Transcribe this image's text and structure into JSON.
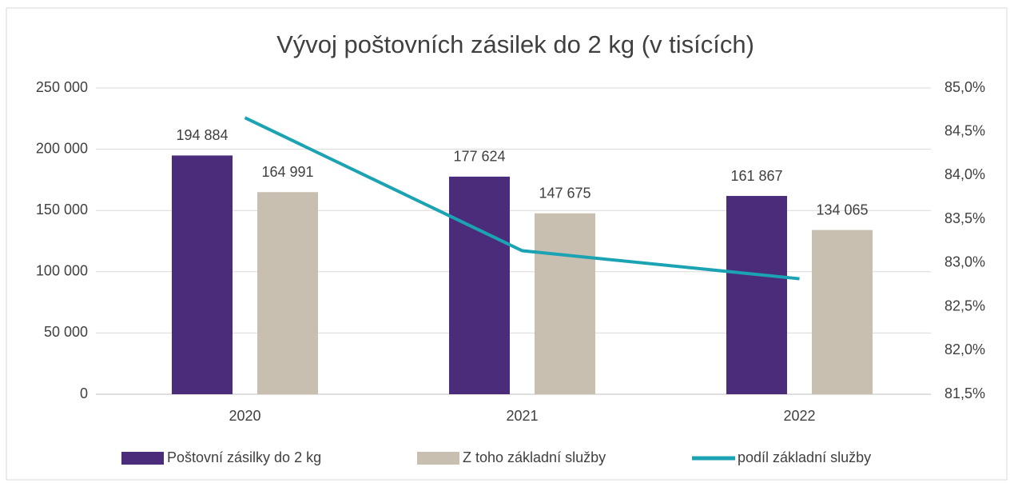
{
  "chart_data": {
    "type": "bar",
    "title": "Vývoj poštovních zásilek do 2 kg (v tisících)",
    "categories": [
      "2020",
      "2021",
      "2022"
    ],
    "series": [
      {
        "name": "Poštovní zásilky do 2 kg",
        "color": "#4b2c7a",
        "values": [
          194884,
          177624,
          161867
        ],
        "value_labels": [
          "194 884",
          "177 624",
          "161 867"
        ]
      },
      {
        "name": "Z toho základní služby",
        "color": "#c8bfb0",
        "values": [
          164991,
          147675,
          134065
        ],
        "value_labels": [
          "164 991",
          "147 675",
          "134 065"
        ]
      },
      {
        "name": "podíl základní služby",
        "color": "#1ba3b3",
        "type": "line",
        "axis": "y2",
        "values": [
          84.66,
          83.14,
          82.82
        ]
      }
    ],
    "ylim": [
      0,
      250000
    ],
    "yticks": [
      0,
      {
        "value": 50000,
        "label": "50 000"
      },
      {
        "value": 100000,
        "label": "100 000"
      },
      {
        "value": 150000,
        "label": "150 000"
      },
      {
        "value": 200000,
        "label": "200 000"
      },
      {
        "value": 250000,
        "label": "250 000"
      }
    ],
    "y2lim": [
      81.5,
      85.0
    ],
    "y2ticks": [
      {
        "value": 81.5,
        "label": "81,5%"
      },
      {
        "value": 82.0,
        "label": "82,0%"
      },
      {
        "value": 82.5,
        "label": "82,5%"
      },
      {
        "value": 83.0,
        "label": "83,0%"
      },
      {
        "value": 83.5,
        "label": "83,5%"
      },
      {
        "value": 84.0,
        "label": "84,0%"
      },
      {
        "value": 84.5,
        "label": "84,5%"
      },
      {
        "value": 85.0,
        "label": "85,0%"
      }
    ],
    "grid": true,
    "legend": "bottom"
  }
}
